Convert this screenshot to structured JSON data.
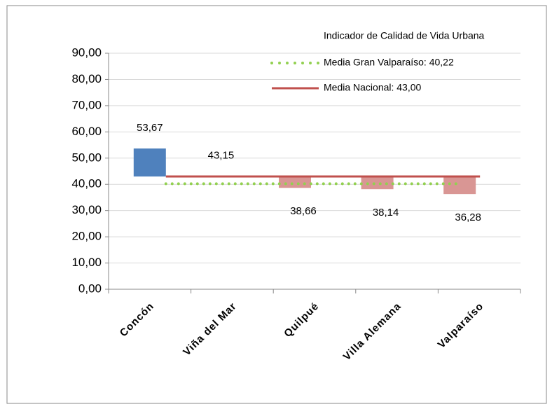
{
  "chart_data": {
    "type": "floating_bar",
    "legend_title": "Indicador de Calidad de Vida Urbana",
    "categories": [
      "Concón",
      "Viña del Mar",
      "Quilpué",
      "Villa Alemana",
      "Valparaíso"
    ],
    "values": [
      53.67,
      43.15,
      38.66,
      38.14,
      36.28
    ],
    "value_labels": [
      "53,67",
      "43,15",
      "38,66",
      "38,14",
      "36,28"
    ],
    "colors": [
      "#4f81bd",
      "#4f81bd",
      "#d99694",
      "#d99694",
      "#d99694"
    ],
    "reference_lines": [
      {
        "name": "Media Gran Valparaíso: 40,22",
        "value": 40.22,
        "color": "#92d050",
        "style": "dotted"
      },
      {
        "name": "Media Nacional: 43,00",
        "value": 43.0,
        "color": "#c0504d",
        "style": "solid"
      }
    ],
    "ylim": [
      0,
      90
    ],
    "yticks": [
      {
        "value": 0,
        "label": "0,00"
      },
      {
        "value": 10,
        "label": "10,00"
      },
      {
        "value": 20,
        "label": "20,00"
      },
      {
        "value": 30,
        "label": "30,00"
      },
      {
        "value": 40,
        "label": "40,00"
      },
      {
        "value": 50,
        "label": "50,00"
      },
      {
        "value": 60,
        "label": "60,00"
      },
      {
        "value": 70,
        "label": "70,00"
      },
      {
        "value": 80,
        "label": "80,00"
      },
      {
        "value": 90,
        "label": "90,00"
      }
    ],
    "grid": true
  }
}
